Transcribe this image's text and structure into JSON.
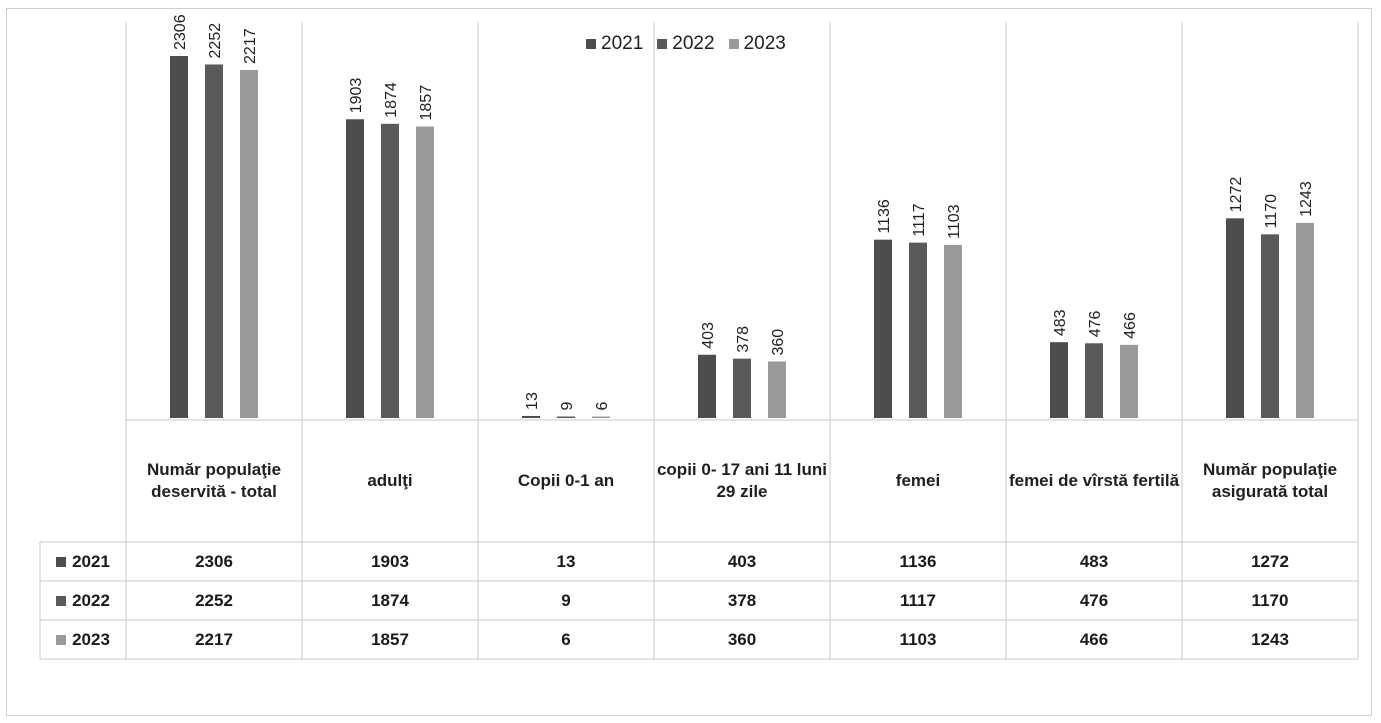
{
  "chart_data": {
    "type": "bar",
    "categories": [
      "Număr populaţie deservită  - total",
      "adulţi",
      "Copii 0-1 an",
      "copii 0- 17 ani 11 luni 29 zile",
      "femei",
      "femei de vîrstă fertilă",
      "Număr populaţie asigurată total"
    ],
    "series": [
      {
        "name": "2021",
        "color": "#4d4d4d",
        "values": [
          2306,
          1903,
          13,
          403,
          1136,
          483,
          1272
        ]
      },
      {
        "name": "2022",
        "color": "#5a5a5a",
        "values": [
          2252,
          1874,
          9,
          378,
          1117,
          476,
          1170
        ]
      },
      {
        "name": "2023",
        "color": "#9a9a9a",
        "values": [
          2217,
          1857,
          6,
          360,
          1103,
          466,
          1243
        ]
      }
    ],
    "ylim": [
      0,
      2306
    ],
    "legend_position": "top-center",
    "data_table": true
  },
  "legend": {
    "items": [
      {
        "label": "2021",
        "color": "#4d4d4d"
      },
      {
        "label": "2022",
        "color": "#5a5a5a"
      },
      {
        "label": "2023",
        "color": "#9a9a9a"
      }
    ]
  },
  "table": {
    "rows": [
      {
        "label": "2021",
        "values": [
          "2306",
          "1903",
          "13",
          "403",
          "1136",
          "483",
          "1272"
        ]
      },
      {
        "label": "2022",
        "values": [
          "2252",
          "1874",
          "9",
          "378",
          "1117",
          "476",
          "1170"
        ]
      },
      {
        "label": "2023",
        "values": [
          "2217",
          "1857",
          "6",
          "360",
          "1103",
          "466",
          "1243"
        ]
      }
    ]
  }
}
